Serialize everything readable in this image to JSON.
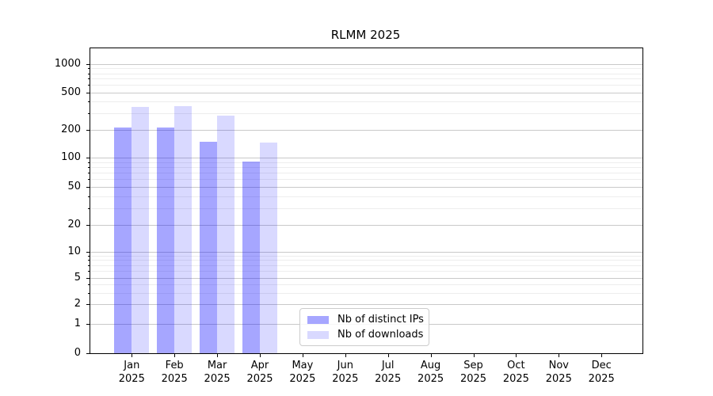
{
  "chart_data": {
    "type": "bar",
    "title": "RLMM 2025",
    "categories": [
      "Jan 2025",
      "Feb 2025",
      "Mar 2025",
      "Apr 2025",
      "May 2025",
      "Jun 2025",
      "Jul 2025",
      "Aug 2025",
      "Sep 2025",
      "Oct 2025",
      "Nov 2025",
      "Dec 2025"
    ],
    "series": [
      {
        "name": "Nb of distinct IPs",
        "key": "ips",
        "color": "rgba(0,0,255,0.35)",
        "values": [
          210,
          210,
          150,
          91,
          0,
          0,
          0,
          0,
          0,
          0,
          0,
          0
        ]
      },
      {
        "name": "Nb of downloads",
        "key": "downloads",
        "color": "rgba(0,0,255,0.15)",
        "values": [
          350,
          360,
          280,
          145,
          0,
          0,
          0,
          0,
          0,
          0,
          0,
          0
        ]
      }
    ],
    "xlabel": "",
    "ylabel": "",
    "yaxis": {
      "scale": "symlog",
      "ticks": [
        0,
        1,
        2,
        5,
        10,
        20,
        50,
        100,
        200,
        500,
        1000
      ],
      "ylim": [
        0,
        1500
      ]
    },
    "grid": true,
    "legend": {
      "position": "lower-center-inside"
    }
  }
}
